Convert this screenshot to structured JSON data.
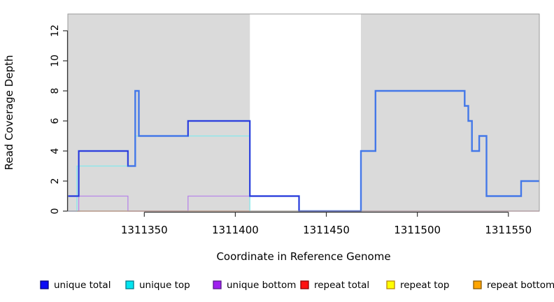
{
  "chart_data": {
    "type": "line",
    "subtype": "step-after coverage plot",
    "title": "",
    "xlabel": "Coordinate in Reference Genome",
    "ylabel": "Read Coverage Depth",
    "xlim": [
      1311308,
      1311567
    ],
    "ylim": [
      0,
      13.1
    ],
    "x_ticks": [
      1311350,
      1311400,
      1311450,
      1311500,
      1311550
    ],
    "y_ticks": [
      0,
      2,
      4,
      6,
      8,
      10,
      12
    ],
    "grid": "off",
    "panel_background": "#DADADA",
    "panel_border_color": "#999999",
    "axis_color": "#333333",
    "masked_region": {
      "x_start": 1311408,
      "x_end": 1311469,
      "color": "#FFFFFF",
      "note": "white band over gray panel"
    },
    "series": [
      {
        "name": "repeat total",
        "in_legend": true,
        "visible": true,
        "color": "#D96080",
        "line_width": 1.2,
        "segments": [
          [
            [
              1311308,
              0
            ],
            [
              1311567,
              0
            ]
          ]
        ]
      },
      {
        "name": "green baseline (unlabeled)",
        "in_legend": false,
        "visible": true,
        "color": "#98D8A8",
        "line_width": 1.2,
        "segments": [
          [
            [
              1311308,
              0
            ],
            [
              1311315,
              0
            ]
          ],
          [
            [
              1311408,
              0
            ],
            [
              1311469,
              0
            ]
          ]
        ]
      },
      {
        "name": "repeat top",
        "in_legend": true,
        "visible": false,
        "color": "#F2E23C",
        "line_width": 1.2,
        "segments": []
      },
      {
        "name": "unique top",
        "in_legend": true,
        "visible": true,
        "color": "#85E8EC",
        "line_width": 1.3,
        "segments": [
          [
            [
              1311308,
              0
            ],
            [
              1311313,
              0
            ],
            [
              1311313,
              3
            ],
            [
              1311345,
              3
            ],
            [
              1311345,
              5
            ],
            [
              1311408,
              5
            ],
            [
              1311408,
              0
            ]
          ]
        ]
      },
      {
        "name": "unique bottom",
        "in_legend": true,
        "visible": true,
        "color": "#B886E8",
        "line_width": 1.3,
        "segments": [
          [
            [
              1311308,
              0
            ],
            [
              1311314,
              0
            ],
            [
              1311314,
              1
            ],
            [
              1311341,
              1
            ],
            [
              1311341,
              0
            ],
            [
              1311374,
              0
            ],
            [
              1311374,
              1
            ],
            [
              1311435,
              1
            ],
            [
              1311435,
              0
            ],
            [
              1311469,
              0
            ]
          ]
        ]
      },
      {
        "name": "repeat bottom",
        "in_legend": true,
        "visible": true,
        "color": "#FF9E2C",
        "line_width": 1.3,
        "segments": [
          [
            [
              1311313,
              0
            ],
            [
              1311408,
              0
            ]
          ]
        ]
      },
      {
        "name": "total coverage (thick bright blue, not in legend)",
        "in_legend": false,
        "visible": true,
        "color": "#4478E8",
        "line_width": 2.4,
        "segments": [
          [
            [
              1311308,
              1
            ],
            [
              1311314,
              1
            ],
            [
              1311314,
              4
            ],
            [
              1311341,
              4
            ],
            [
              1311341,
              3
            ],
            [
              1311345,
              3
            ],
            [
              1311345,
              8
            ],
            [
              1311347,
              8
            ],
            [
              1311347,
              5
            ],
            [
              1311374,
              5
            ],
            [
              1311374,
              6
            ],
            [
              1311408,
              6
            ],
            [
              1311408,
              1
            ],
            [
              1311435,
              1
            ],
            [
              1311435,
              0
            ],
            [
              1311469,
              0
            ],
            [
              1311469,
              4
            ],
            [
              1311477,
              4
            ],
            [
              1311477,
              8
            ],
            [
              1311526,
              8
            ],
            [
              1311526,
              7
            ],
            [
              1311528,
              7
            ],
            [
              1311528,
              6
            ],
            [
              1311530,
              6
            ],
            [
              1311530,
              4
            ],
            [
              1311534,
              4
            ],
            [
              1311534,
              5
            ],
            [
              1311538,
              5
            ],
            [
              1311538,
              1
            ],
            [
              1311557,
              1
            ],
            [
              1311557,
              2
            ],
            [
              1311567,
              2
            ]
          ]
        ]
      },
      {
        "name": "unique total",
        "in_legend": true,
        "visible": true,
        "color": "#2D2DD8",
        "line_width": 1.4,
        "segments": [
          [
            [
              1311308,
              1
            ],
            [
              1311314,
              1
            ],
            [
              1311314,
              4
            ],
            [
              1311341,
              4
            ],
            [
              1311341,
              3
            ]
          ],
          [
            [
              1311374,
              5
            ],
            [
              1311374,
              6
            ],
            [
              1311408,
              6
            ],
            [
              1311408,
              1
            ],
            [
              1311435,
              1
            ],
            [
              1311435,
              0
            ],
            [
              1311469,
              0
            ]
          ]
        ]
      }
    ],
    "legend": {
      "position": "bottom",
      "entries": [
        {
          "label": "unique total",
          "fill": "#0A0AF5",
          "border": "#000080"
        },
        {
          "label": "unique top",
          "fill": "#00E5F0",
          "border": "#007A8A"
        },
        {
          "label": "unique bottom",
          "fill": "#A020F0",
          "border": "#581A8B"
        },
        {
          "label": "repeat total",
          "fill": "#FF1010",
          "border": "#8B0000"
        },
        {
          "label": "repeat top",
          "fill": "#FFFF00",
          "border": "#B8860B"
        },
        {
          "label": "repeat bottom",
          "fill": "#FFA500",
          "border": "#8B5A00"
        }
      ]
    }
  }
}
